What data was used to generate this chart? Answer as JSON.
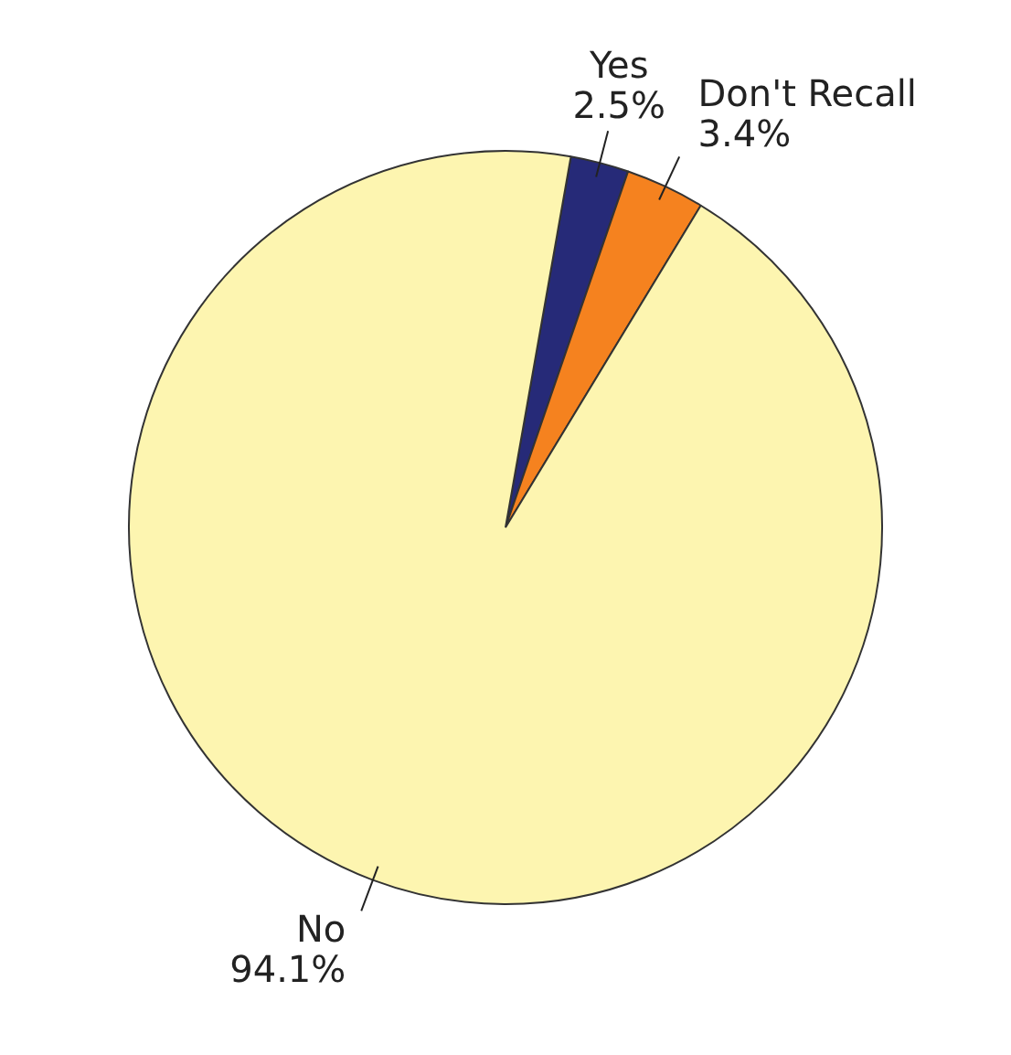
{
  "chart_data": {
    "type": "pie",
    "categories": [
      "Yes",
      "Don't Recall",
      "No"
    ],
    "values": [
      2.5,
      3.4,
      94.1
    ],
    "colors": [
      "#262a78",
      "#f5821f",
      "#fdf5b0"
    ],
    "value_labels": [
      "2.5%",
      "3.4%",
      "94.1%"
    ],
    "legend": false
  }
}
